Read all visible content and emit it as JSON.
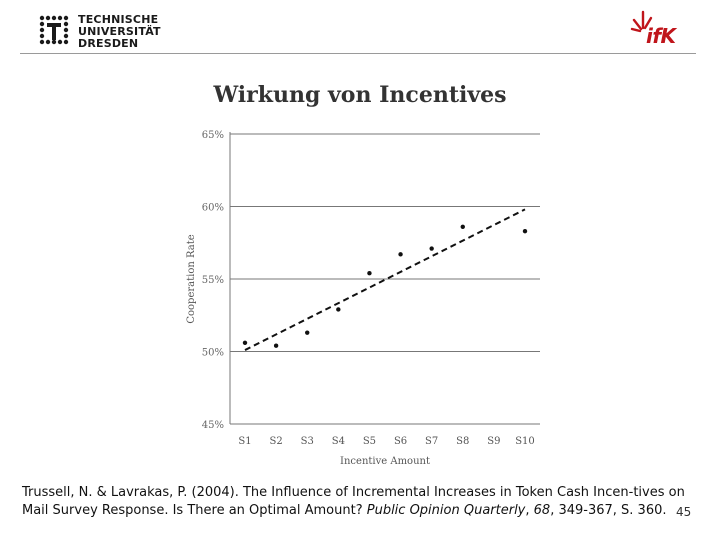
{
  "header": {
    "tud_logo_lines": [
      "TECHNISCHE",
      "UNIVERSITÄT",
      "DRESDEN"
    ],
    "ifk_logo_text": "ifK",
    "ifk_color": "#c0151b"
  },
  "slide": {
    "title": "Wirkung von Incentives",
    "page_number": "45"
  },
  "caption": {
    "authors": "Trussell, N. & Lavrakas, P. (2004). The Influence of Incremental Increases in Token Cash Incen-tives on Mail Survey Response. Is There an Optimal Amount? ",
    "journal": "Public Opinion Quarterly",
    "sep1": ", ",
    "volume": "68",
    "pages": ", 349-367, S. 360."
  },
  "chart_data": {
    "type": "scatter",
    "xlabel": "Incentive Amount",
    "ylabel": "Cooperation Rate",
    "categories": [
      "S1",
      "S2",
      "S3",
      "S4",
      "S5",
      "S6",
      "S7",
      "S8",
      "S9",
      "S10"
    ],
    "ylim": [
      45,
      65
    ],
    "yticks": [
      45,
      50,
      55,
      60,
      65
    ],
    "ytick_labels": [
      "45%",
      "50%",
      "55%",
      "60%",
      "65%"
    ],
    "points": [
      {
        "x": "S1",
        "y": 50.6
      },
      {
        "x": "S2",
        "y": 50.4
      },
      {
        "x": "S3",
        "y": 51.3
      },
      {
        "x": "S4",
        "y": 52.9
      },
      {
        "x": "S5",
        "y": 55.4
      },
      {
        "x": "S6",
        "y": 56.7
      },
      {
        "x": "S7",
        "y": 57.1
      },
      {
        "x": "S8",
        "y": 58.6
      },
      {
        "x": "S10",
        "y": 58.3
      }
    ],
    "trendline": {
      "style": "dashed",
      "start": {
        "x": "S1",
        "y": 50.1
      },
      "end": {
        "x": "S10",
        "y": 59.8
      }
    },
    "grid": "horizontal",
    "legend": "none"
  }
}
